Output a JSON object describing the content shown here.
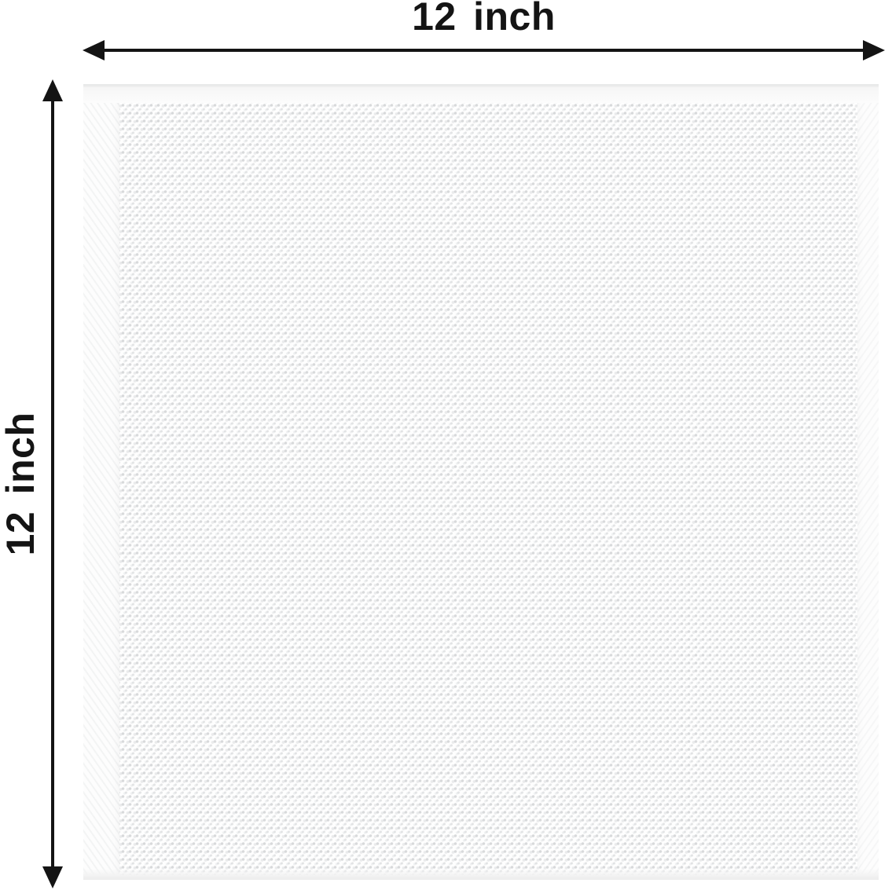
{
  "diagram": {
    "width_dimension": {
      "label": "12 inch"
    },
    "height_dimension": {
      "label": "12 inch"
    },
    "colors": {
      "ink": "#141414",
      "background": "#ffffff",
      "fabric_base": "#fefefe",
      "fabric_texture_dot": "#bdbfc2",
      "fabric_edge": "#e9eaea"
    }
  }
}
